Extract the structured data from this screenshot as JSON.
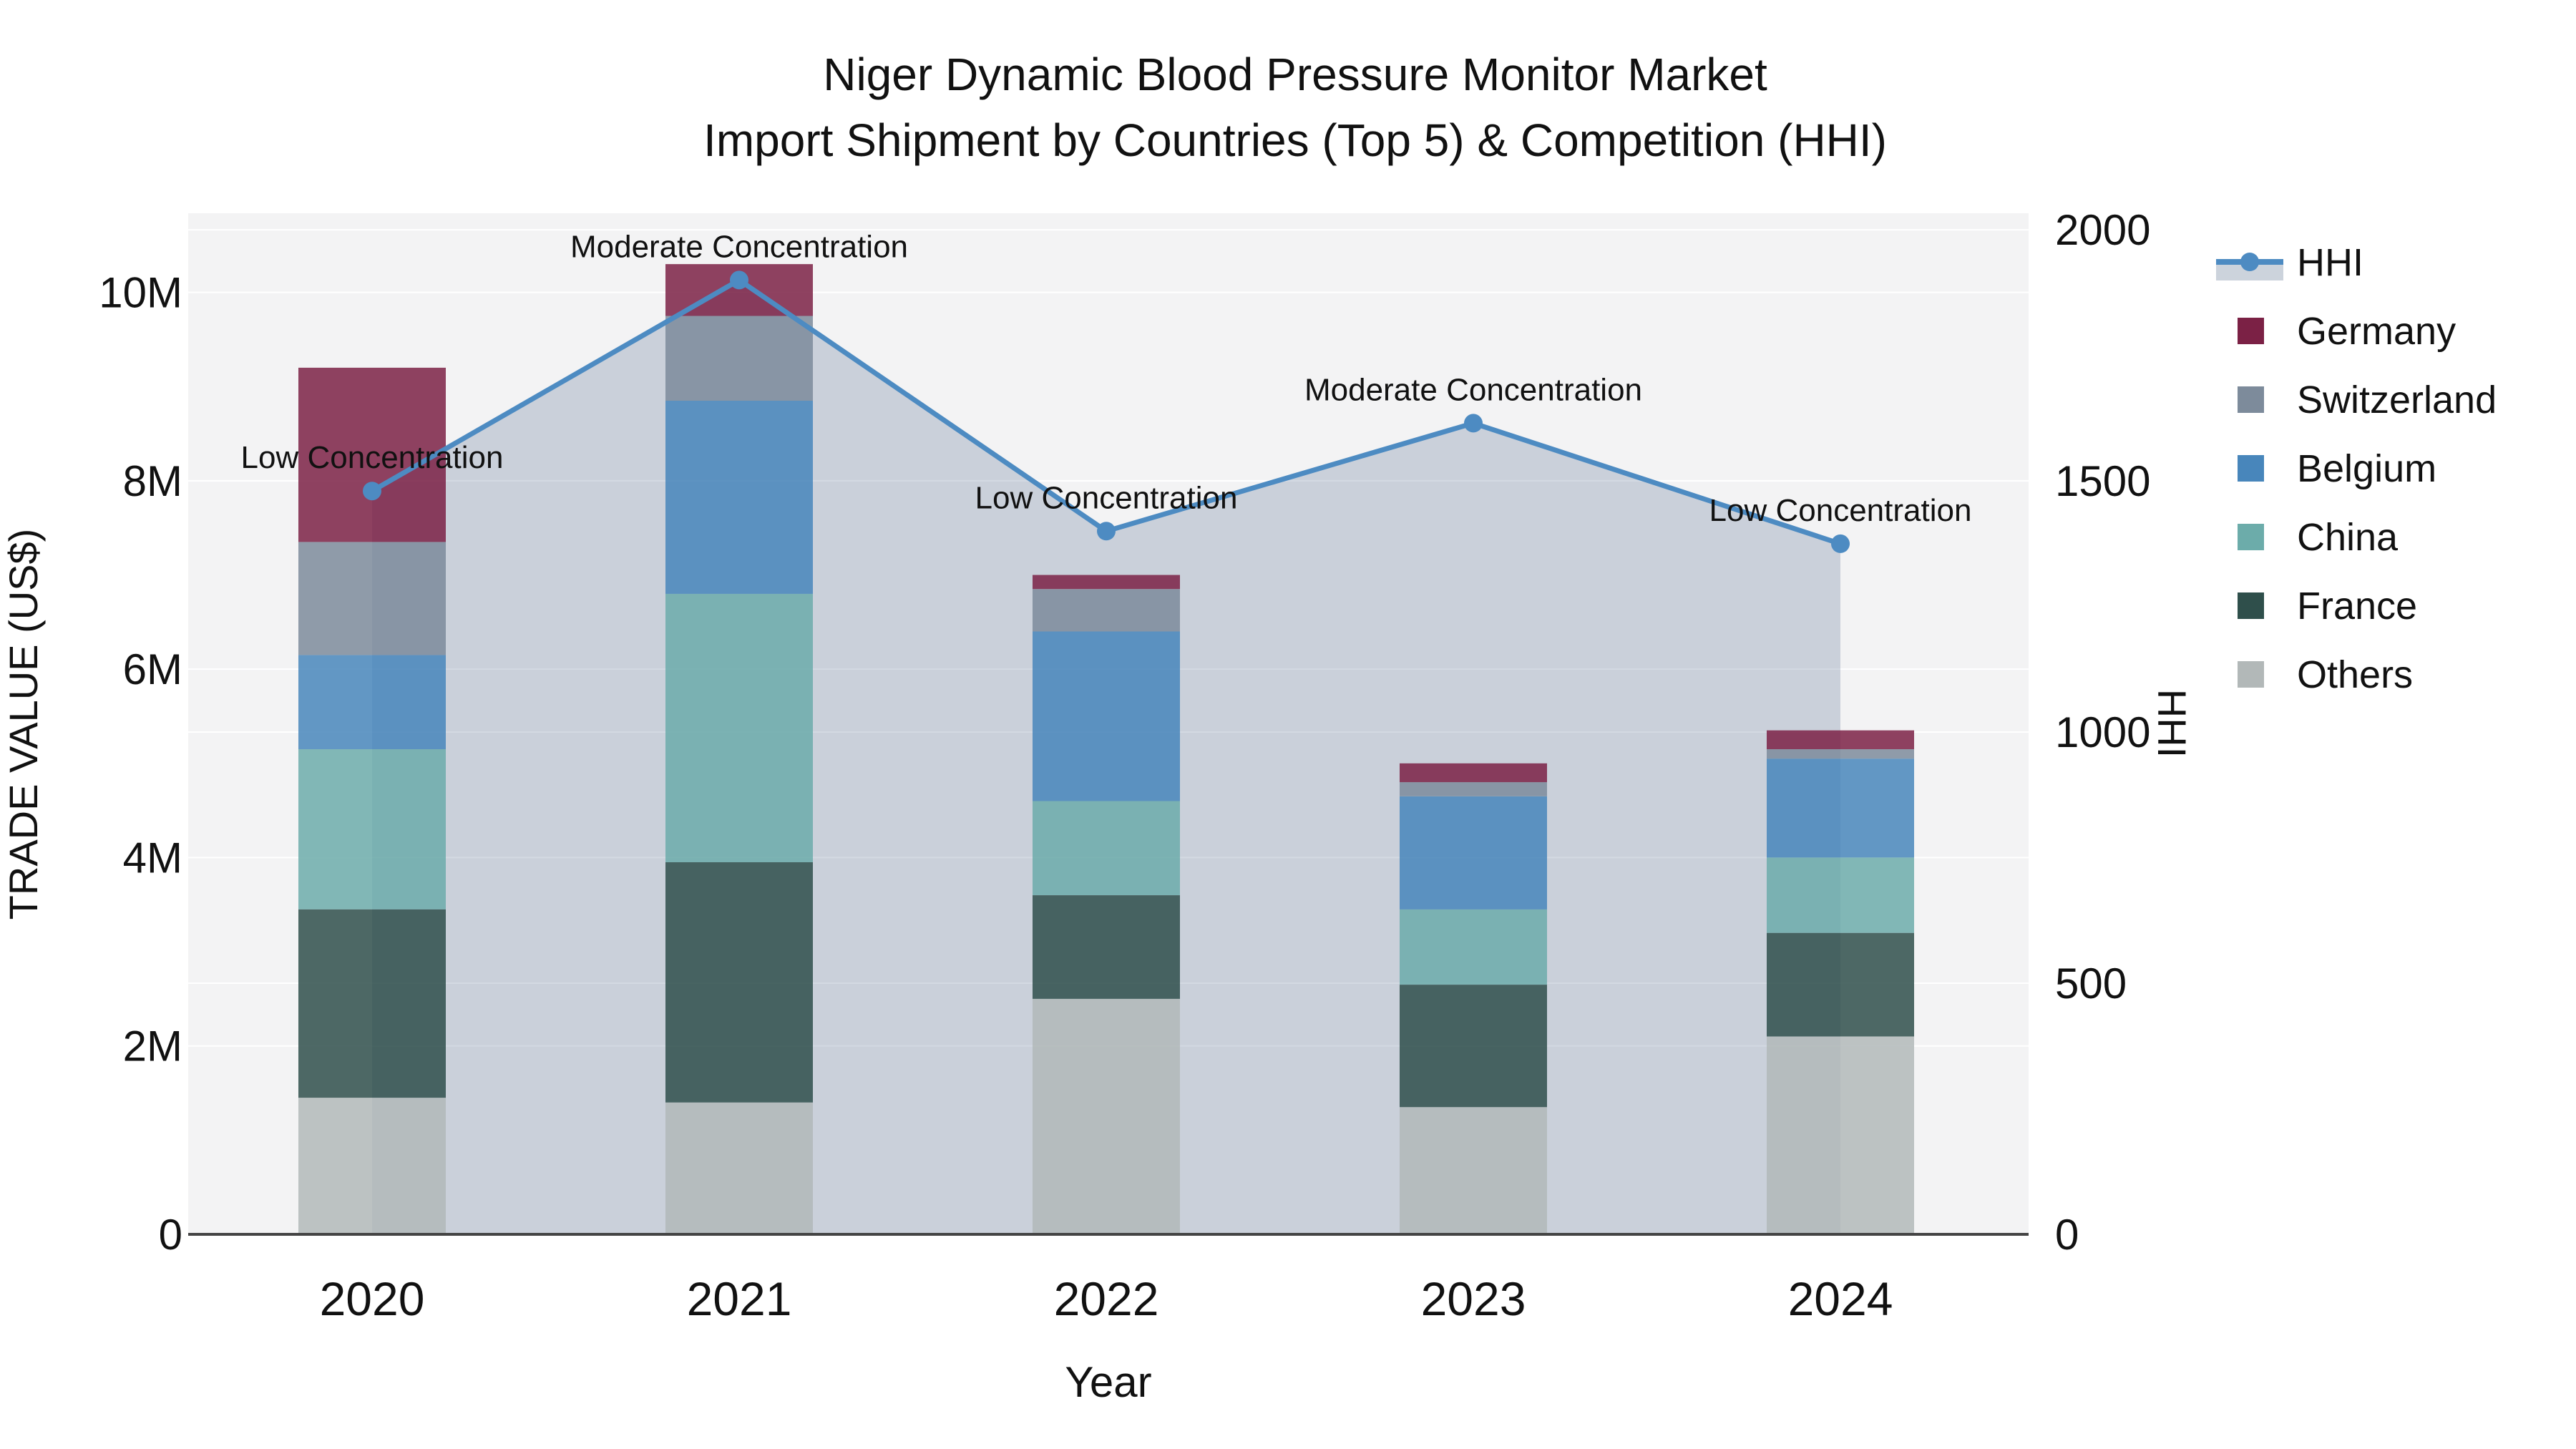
{
  "title": {
    "line1": "Niger Dynamic Blood Pressure Monitor Market",
    "line2": "Import Shipment by Countries (Top 5) & Competition (HHI)"
  },
  "colors": {
    "hhi_line": "#4d8bc2",
    "hhi_area_fill": "rgba(96,118,150,0.28)",
    "hhi_legend_band": "#ccd3dc",
    "plot_background": "#f3f3f4",
    "gridline": "#ffffff",
    "axis_line": "#444444",
    "text": "#111111"
  },
  "chart_data": {
    "type": "bar",
    "subtype": "stacked-bars-with-line",
    "categories": [
      "2020",
      "2021",
      "2022",
      "2023",
      "2024"
    ],
    "values_unit": "M US$ (trade value, millions)",
    "series": [
      {
        "name": "Germany",
        "color": "#7b2145",
        "values": [
          1.85,
          0.55,
          0.15,
          0.2,
          0.2
        ]
      },
      {
        "name": "Switzerland",
        "color": "#7d8b9b",
        "values": [
          1.2,
          0.9,
          0.45,
          0.15,
          0.1
        ]
      },
      {
        "name": "Belgium",
        "color": "#4886bb",
        "values": [
          1.0,
          2.05,
          1.8,
          1.2,
          1.05
        ]
      },
      {
        "name": "China",
        "color": "#6cacaa",
        "values": [
          1.7,
          2.85,
          1.0,
          0.8,
          0.8
        ]
      },
      {
        "name": "France",
        "color": "#2f4f4b",
        "values": [
          2.0,
          2.55,
          1.1,
          1.3,
          1.1
        ]
      },
      {
        "name": "Others",
        "color": "#b2b8b8",
        "values": [
          1.45,
          1.4,
          2.5,
          1.35,
          2.1
        ]
      }
    ],
    "bar_totals": [
      9.2,
      10.3,
      7.0,
      5.0,
      5.35
    ],
    "line_series": {
      "name": "HHI",
      "values": [
        1480,
        1900,
        1400,
        1615,
        1375
      ]
    },
    "annotations": [
      "Low Concentration",
      "Moderate Concentration",
      "Low Concentration",
      "Moderate Concentration",
      "Low Concentration"
    ],
    "xlabel": "Year",
    "ylabel_left": "TRADE VALUE (US$)",
    "ylabel_right": "HHI",
    "y_left_ticks": [
      {
        "v": 0,
        "label": "0"
      },
      {
        "v": 2,
        "label": "2M"
      },
      {
        "v": 4,
        "label": "4M"
      },
      {
        "v": 6,
        "label": "6M"
      },
      {
        "v": 8,
        "label": "8M"
      },
      {
        "v": 10,
        "label": "10M"
      }
    ],
    "y_right_ticks": [
      {
        "v": 0,
        "label": "0"
      },
      {
        "v": 500,
        "label": "500"
      },
      {
        "v": 1000,
        "label": "1000"
      },
      {
        "v": 1500,
        "label": "1500"
      },
      {
        "v": 2000,
        "label": "2000"
      }
    ],
    "y_left_range": [
      0,
      10.84
    ],
    "y_right_range": [
      0,
      2033
    ],
    "grid": true,
    "legend_position": "right"
  },
  "legend": {
    "items": [
      {
        "label": "HHI",
        "type": "line"
      },
      {
        "label": "Germany",
        "type": "swatch"
      },
      {
        "label": "Switzerland",
        "type": "swatch"
      },
      {
        "label": "Belgium",
        "type": "swatch"
      },
      {
        "label": "China",
        "type": "swatch"
      },
      {
        "label": "France",
        "type": "swatch"
      },
      {
        "label": "Others",
        "type": "swatch"
      }
    ]
  }
}
